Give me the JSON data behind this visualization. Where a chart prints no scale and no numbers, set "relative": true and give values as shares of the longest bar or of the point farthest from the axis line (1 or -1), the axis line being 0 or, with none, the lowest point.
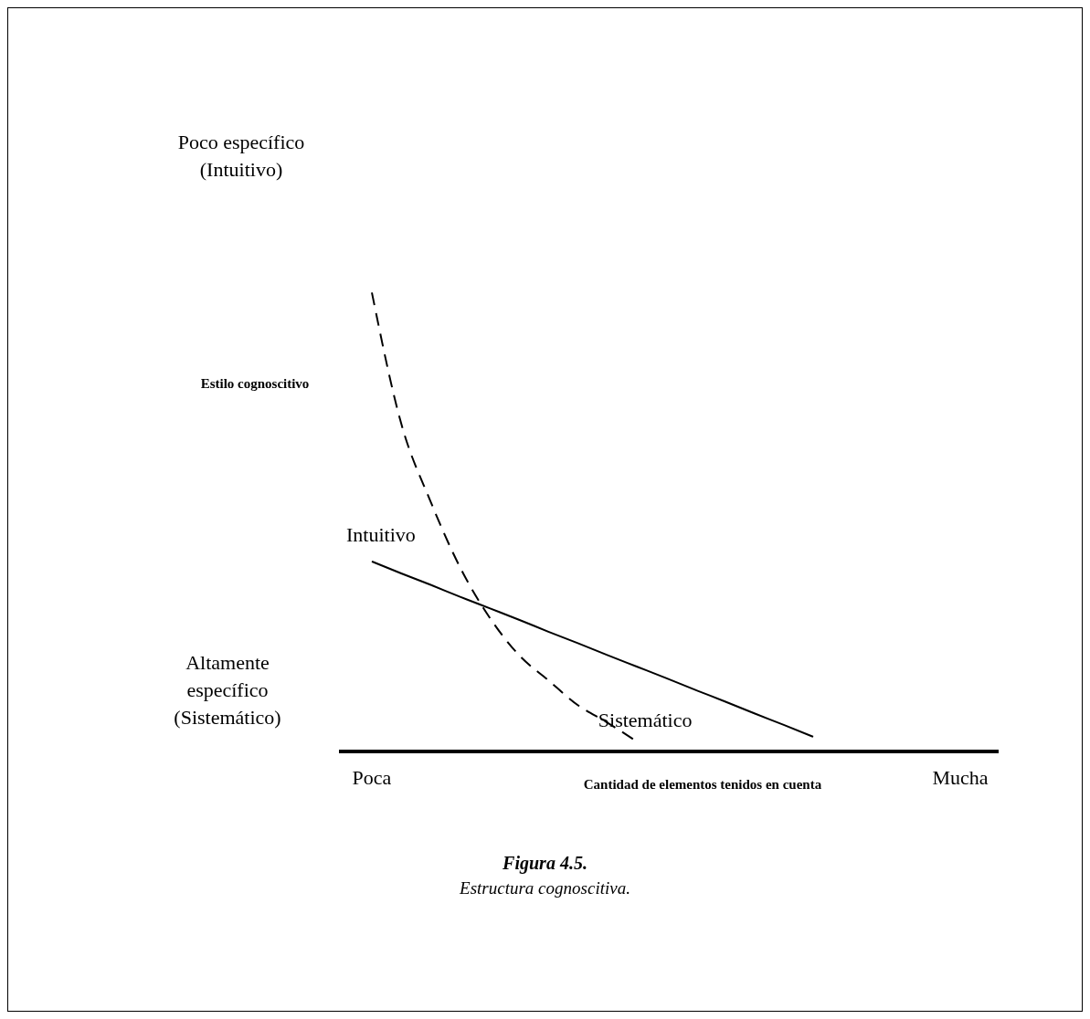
{
  "chart_data": {
    "type": "line",
    "title": "Figura 4.5.",
    "subtitle": "Estructura cognoscitiva.",
    "ylabel": "Estilo cognoscitivo",
    "xlabel": "Cantidad de elementos tenidos en cuenta",
    "relative": true,
    "grid": false,
    "legend": false,
    "marker": "none",
    "categories": [
      "Poca",
      null,
      null,
      null,
      null,
      null,
      null,
      null,
      null,
      null,
      null,
      null,
      null,
      null,
      null,
      null,
      null,
      null,
      null,
      null,
      "Mucha"
    ],
    "annotations": [
      "Poco específico (Intuitivo)",
      "Altamente específico (Sistemático)"
    ],
    "series": [
      {
        "name": "Intuitivo",
        "color": "#000000",
        "line_style": "solid",
        "values": [
          0.414,
          0.388,
          0.363,
          0.337,
          0.312,
          0.287,
          0.261,
          0.236,
          0.21,
          0.185,
          0.16,
          0.134,
          0.109,
          0.083,
          0.058,
          0.032,
          null,
          null,
          null,
          null,
          null
        ]
      },
      {
        "name": "Sistemático",
        "color": "#000000",
        "line_style": "dashed",
        "values": [
          1,
          0.714,
          0.544,
          0.401,
          0.292,
          0.21,
          0.155,
          0.101,
          0.063,
          0.022,
          null,
          null,
          null,
          null,
          null,
          null,
          null,
          null,
          null,
          null,
          null
        ]
      }
    ]
  }
}
